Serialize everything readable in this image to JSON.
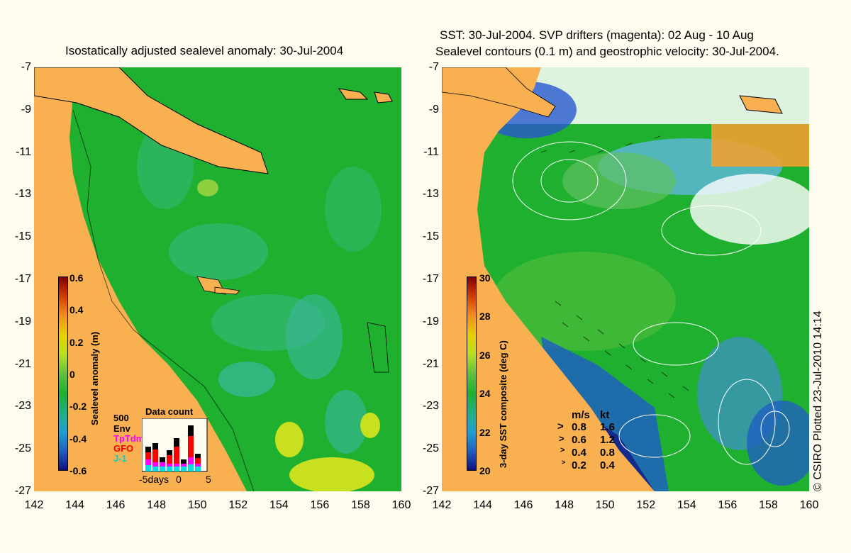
{
  "left": {
    "title": "Isostatically adjusted sealevel anomaly: 30-Jul-2004",
    "colorbar": {
      "name": "Sealevel anomaly (m)",
      "ticks": [
        "0.6",
        "0.4",
        "0.2",
        "0",
        "-0.2",
        "-0.4",
        "-0.6"
      ]
    },
    "data_count": {
      "title": "Data count",
      "max": "500",
      "series": [
        {
          "name": "Env",
          "color": "#000000"
        },
        {
          "name": "TpTdm",
          "color": "#ff00ff"
        },
        {
          "name": "GFO",
          "color": "#ff0000"
        },
        {
          "name": "J-1",
          "color": "#00e0e0"
        }
      ],
      "xlabel_left": "-5days",
      "xlabel_mid": "0",
      "xlabel_right": "5"
    }
  },
  "right": {
    "title_line1": "SST: 30-Jul-2004. SVP drifters (magenta): 02 Aug - 10 Aug",
    "title_line2": "Sealevel contours (0.1 m) and geostrophic velocity: 30-Jul-2004.",
    "colorbar": {
      "name": "3-day SST composite (deg C)",
      "ticks": [
        "30",
        "28",
        "26",
        "24",
        "22",
        "20"
      ]
    },
    "velocity_legend": {
      "header_ms": "m/s",
      "header_kt": "kt",
      "rows": [
        {
          "ms": "0.8",
          "kt": "1.6"
        },
        {
          "ms": "0.6",
          "kt": "1.2"
        },
        {
          "ms": "0.4",
          "kt": "0.8"
        },
        {
          "ms": "0.2",
          "kt": "0.4"
        }
      ]
    }
  },
  "y_ticks": [
    "-7",
    "-9",
    "-11",
    "-13",
    "-15",
    "-17",
    "-19",
    "-21",
    "-23",
    "-25",
    "-27"
  ],
  "x_ticks": [
    "142",
    "144",
    "146",
    "148",
    "150",
    "152",
    "154",
    "156",
    "158",
    "160"
  ],
  "credit": "© CSIRO Plotted 23-Jul-2010 14:14",
  "colors": {
    "land": "#f8b050",
    "sea_green": "#1fb030",
    "background": "#fffdf0"
  }
}
